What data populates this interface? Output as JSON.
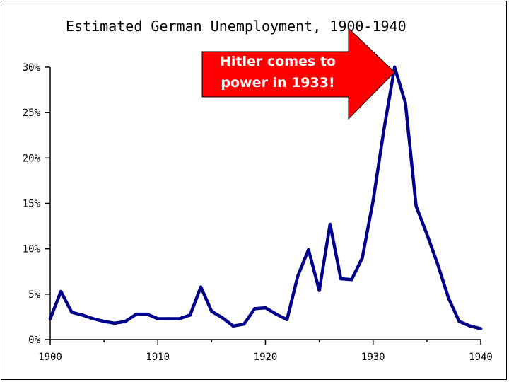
{
  "chart_data": {
    "type": "line",
    "title": "Estimated German Unemployment, 1900-1940",
    "xlabel": "",
    "ylabel": "",
    "xlim": [
      1900,
      1940
    ],
    "ylim": [
      0,
      30
    ],
    "x_ticks": [
      "1900",
      "1910",
      "1920",
      "1930",
      "1940"
    ],
    "y_ticks": [
      "0%",
      "5%",
      "10%",
      "15%",
      "20%",
      "25%",
      "30%"
    ],
    "grid": false,
    "series": [
      {
        "color": "#00008b",
        "x": [
          1900,
          1901,
          1902,
          1903,
          1904,
          1905,
          1906,
          1907,
          1908,
          1909,
          1910,
          1911,
          1912,
          1913,
          1914,
          1915,
          1916,
          1917,
          1918,
          1919,
          1920,
          1921,
          1922,
          1923,
          1924,
          1925,
          1926,
          1927,
          1928,
          1929,
          1930,
          1931,
          1932,
          1933,
          1934,
          1935,
          1936,
          1937,
          1938,
          1939,
          1940
        ],
        "values": [
          2.3,
          5.3,
          3.0,
          2.7,
          2.3,
          2.0,
          1.8,
          2.0,
          2.8,
          2.8,
          2.3,
          2.3,
          2.3,
          2.7,
          5.8,
          3.1,
          2.4,
          1.5,
          1.7,
          3.4,
          3.5,
          2.8,
          2.2,
          7.0,
          9.9,
          5.4,
          12.7,
          6.7,
          6.6,
          9.0,
          15.3,
          23.1,
          30.0,
          26.1,
          14.7,
          11.6,
          8.3,
          4.6,
          2.0,
          1.5,
          1.2
        ]
      }
    ],
    "annotation": {
      "text_line1": "Hitler comes to",
      "text_line2": "power in 1933!",
      "target_x": 1932,
      "target_y": 30.0,
      "fill": "#ff0000",
      "text_color": "#ffffff"
    }
  }
}
